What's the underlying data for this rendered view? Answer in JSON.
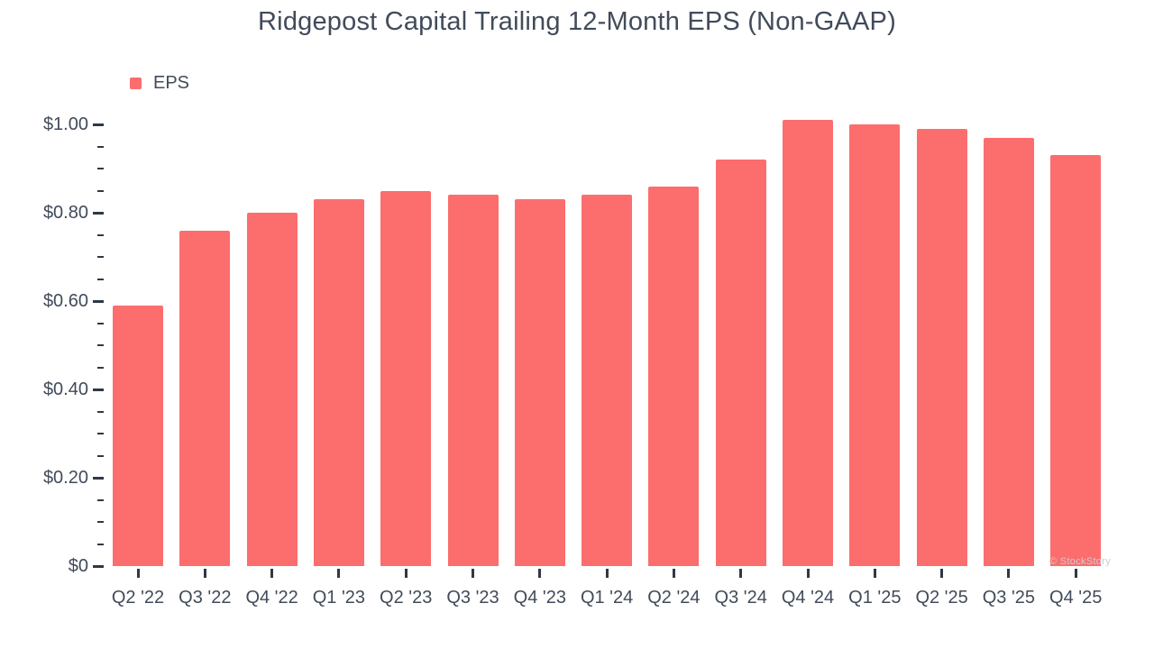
{
  "watermark": "© StockStory",
  "colors": {
    "bar": "#FC6D6D",
    "text": "#414B5A",
    "tick": "#2F3945",
    "watermark": "#C8CED6",
    "background": "#FFFFFF"
  },
  "chart_data": {
    "type": "bar",
    "title": "Ridgepost Capital Trailing 12-Month EPS (Non-GAAP)",
    "categories": [
      "Q2 '22",
      "Q3 '22",
      "Q4 '22",
      "Q1 '23",
      "Q2 '23",
      "Q3 '23",
      "Q4 '23",
      "Q1 '24",
      "Q2 '24",
      "Q3 '24",
      "Q4 '24",
      "Q1 '25",
      "Q2 '25",
      "Q3 '25",
      "Q4 '25"
    ],
    "series": [
      {
        "name": "EPS",
        "color": "#FC6D6D",
        "values": [
          0.59,
          0.76,
          0.8,
          0.83,
          0.85,
          0.84,
          0.83,
          0.84,
          0.86,
          0.92,
          1.01,
          1.0,
          0.99,
          0.97,
          0.93
        ]
      }
    ],
    "xlabel": "",
    "ylabel": "",
    "y_axis": {
      "min": 0,
      "max": 1.0,
      "major_step": 0.2,
      "minor_step": 0.05,
      "tick_labels": [
        "$0",
        "$0.20",
        "$0.40",
        "$0.60",
        "$0.80",
        "$1.00"
      ]
    },
    "ylim": [
      0,
      1.05
    ],
    "grid": false,
    "legend_position": "top-left"
  }
}
